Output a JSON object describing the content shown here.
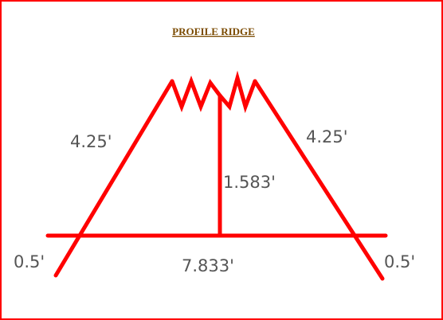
{
  "title": "PROFILE RIDGE",
  "colors": {
    "line": "#ff0000",
    "frame": "#ff0000",
    "title": "#7a4a00",
    "text": "#555555",
    "background": "#ffffff"
  },
  "dimensions": {
    "left_rafter": "4.25'",
    "right_rafter": "4.25'",
    "height": "1.583'",
    "span": "7.833'",
    "left_overhang": "0.5'",
    "right_overhang": "0.5'"
  }
}
